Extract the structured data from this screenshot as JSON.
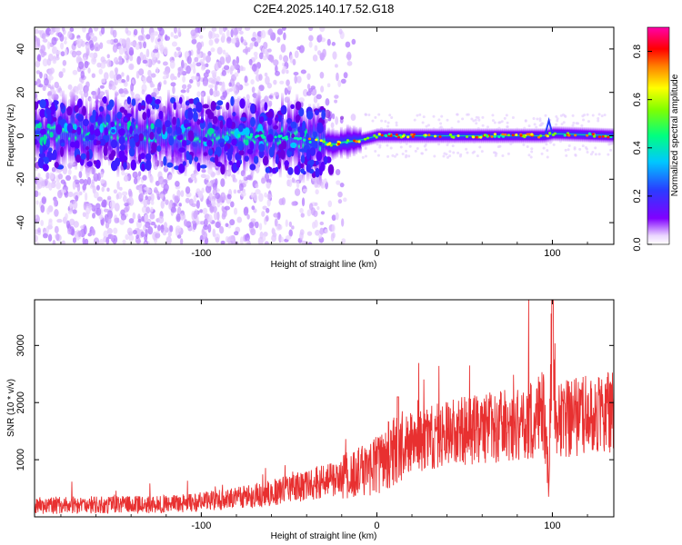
{
  "title": "C2E4.2025.140.17.52.G18",
  "chart_data": [
    {
      "type": "heatmap",
      "xlabel": "Height of straight line (km)",
      "ylabel": "Frequency (Hz)",
      "xlim": [
        -195,
        135
      ],
      "ylim": [
        -50,
        50
      ],
      "x_ticks": [
        -100,
        0,
        100
      ],
      "x_tick_labels": [
        "-100",
        "0",
        "100"
      ],
      "y_ticks": [
        -40,
        -20,
        0,
        20,
        40
      ],
      "y_tick_labels": [
        "-40",
        "-20",
        "0",
        "20",
        "40"
      ],
      "colorbar": {
        "label": "Normalized spectral amplitude",
        "range": [
          0.0,
          0.9
        ],
        "ticks": [
          0.0,
          0.2,
          0.4,
          0.6,
          0.8
        ],
        "tick_labels": [
          "0.0",
          "0.2",
          "0.4",
          "0.6",
          "0.8"
        ],
        "colormap": "rainbow (violet to red to magenta)"
      },
      "center_track": {
        "x": [
          -195,
          -150,
          -100,
          -60,
          -40,
          -30,
          -25,
          -20,
          -10,
          0,
          10,
          20,
          60,
          90,
          95,
          100,
          135
        ],
        "y": [
          1,
          2,
          0,
          0,
          -2,
          -3,
          -4,
          -3,
          -2,
          0,
          0,
          0,
          0,
          0,
          0,
          1,
          0
        ]
      },
      "grid": false
    },
    {
      "type": "line",
      "xlabel": "Height of straight line (km)",
      "ylabel": "SNR (10 * v/v)",
      "xlim": [
        -195,
        135
      ],
      "ylim": [
        0,
        3800
      ],
      "x_ticks": [
        -100,
        0,
        100
      ],
      "x_tick_labels": [
        "-100",
        "0",
        "100"
      ],
      "y_ticks": [
        1000,
        2000,
        3000
      ],
      "y_tick_labels": [
        "1000",
        "2000",
        "3000"
      ],
      "series": [
        {
          "color": "#e83030",
          "x": [
            -195,
            -160,
            -120,
            -100,
            -80,
            -60,
            -40,
            -20,
            -10,
            0,
            5,
            10,
            20,
            40,
            60,
            80,
            90,
            95,
            98,
            100,
            102,
            110,
            120,
            135
          ],
          "y": [
            200,
            210,
            220,
            260,
            330,
            420,
            560,
            680,
            780,
            900,
            1050,
            1150,
            1300,
            1450,
            1550,
            1620,
            1700,
            1900,
            600,
            3700,
            1700,
            1720,
            1800,
            1850
          ]
        }
      ],
      "grid": false
    }
  ]
}
